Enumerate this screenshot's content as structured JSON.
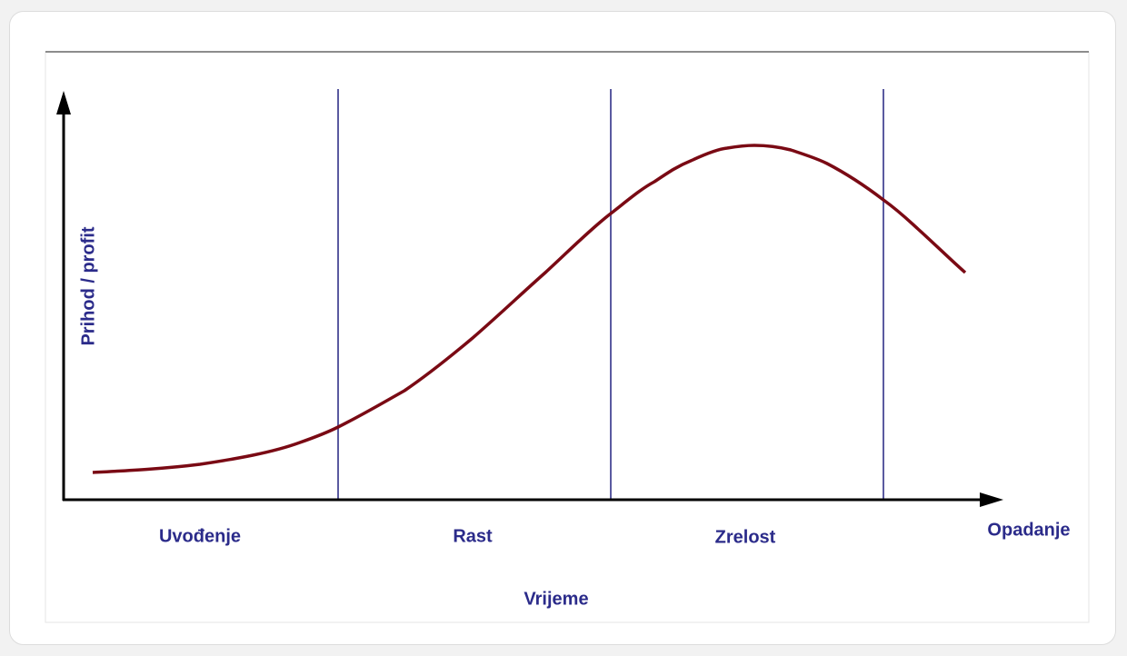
{
  "axes": {
    "y_label": "Prihod / profit",
    "x_label": "Vrijeme"
  },
  "stages": [
    "Uvođenje",
    "Rast",
    "Zrelost",
    "Opadanje"
  ]
}
